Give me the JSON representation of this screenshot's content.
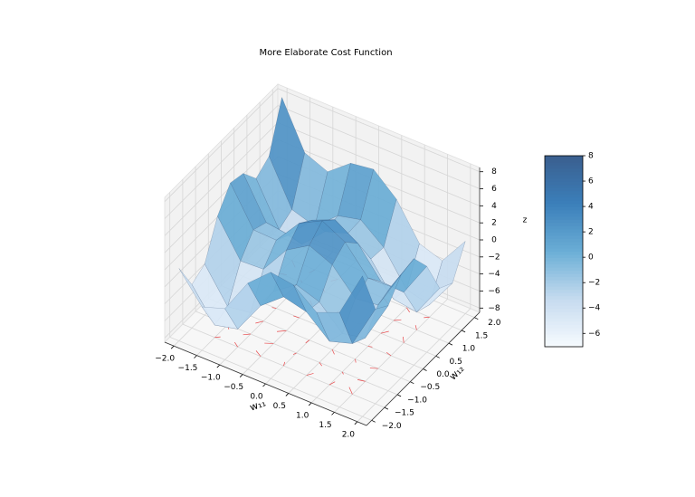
{
  "chart_data": {
    "type": "surface3d",
    "title": "More Elaborate Cost Function",
    "x_label": "w₁₁",
    "y_label": "w₁₂",
    "z_label": "z",
    "x": [
      -2,
      -1.5,
      -1,
      -0.5,
      0,
      0.5,
      1,
      1.5,
      2
    ],
    "y": [
      -2,
      -1.5,
      -1,
      -0.5,
      0,
      0.5,
      1,
      1.5,
      2
    ],
    "z": [
      [
        0,
        -3.4,
        -2.5,
        1.6,
        4,
        3.6,
        1.5,
        2.6,
        8
      ],
      [
        -3.4,
        -7.05,
        -6.4,
        -2.55,
        -0.4,
        -1.05,
        -3.4,
        -2.55,
        2.6
      ],
      [
        -2.5,
        -6.4,
        -6,
        -2.4,
        -0.5,
        -1.4,
        -4,
        -3.4,
        1.5
      ],
      [
        1.6,
        -2.55,
        -2.4,
        0.95,
        2.6,
        1.45,
        -1.4,
        -1.05,
        3.6
      ],
      [
        4,
        -0.4,
        -0.5,
        2.6,
        4,
        2.6,
        -0.5,
        -0.4,
        4
      ],
      [
        3.6,
        -1.05,
        -1.4,
        1.45,
        2.6,
        0.95,
        -2.4,
        -2.55,
        1.6
      ],
      [
        1.5,
        -3.4,
        -4,
        -1.4,
        -0.5,
        -2.4,
        -6,
        -6.4,
        -2.5
      ],
      [
        2.6,
        -2.55,
        -3.4,
        -1.05,
        -0.4,
        -2.55,
        -6.4,
        -7.05,
        -3.4
      ],
      [
        8,
        2.6,
        1.5,
        3.6,
        4,
        1.6,
        -2.5,
        -3.4,
        0
      ]
    ],
    "xlim": [
      -2.2,
      2.2
    ],
    "ylim": [
      -2.2,
      2.2
    ],
    "zlim": [
      -8.5,
      8.5
    ],
    "xticks": [
      {
        "value": -2,
        "label": "−2.0"
      },
      {
        "value": -1.5,
        "label": "−1.5"
      },
      {
        "value": -1,
        "label": "−1.0"
      },
      {
        "value": -0.5,
        "label": "−0.5"
      },
      {
        "value": 0,
        "label": "0.0"
      },
      0.5,
      {
        "value": 1,
        "label": "1.0"
      },
      1.5,
      {
        "value": 2,
        "label": "2.0"
      }
    ],
    "yticks": [
      {
        "value": -2,
        "label": "−2.0"
      },
      {
        "value": -1.5,
        "label": "−1.5"
      },
      {
        "value": -1,
        "label": "−1.0"
      },
      {
        "value": -0.5,
        "label": "−0.5"
      },
      {
        "value": 0,
        "label": "0.0"
      },
      0.5,
      {
        "value": 1,
        "label": "1.0"
      },
      1.5,
      {
        "value": 2,
        "label": "2.0"
      }
    ],
    "zticks": [
      {
        "value": -8,
        "label": "−8"
      },
      {
        "value": -6,
        "label": "−6"
      },
      {
        "value": -4,
        "label": "−4"
      },
      {
        "value": -2,
        "label": "−2"
      },
      0,
      2,
      4,
      6,
      8
    ],
    "colormap": [
      "#f7fbff",
      "#c6dbef",
      "#6baed6",
      "#3b7fba",
      "#3a5f8f"
    ],
    "quiver_color": "#e8474a",
    "colorbar": {
      "lim": [
        -7.05,
        8
      ],
      "ticks": [
        {
          "value": -6,
          "label": "−6"
        },
        {
          "value": -4,
          "label": "−4"
        },
        {
          "value": -2,
          "label": "−2"
        },
        0,
        2,
        4,
        6,
        8
      ]
    }
  }
}
